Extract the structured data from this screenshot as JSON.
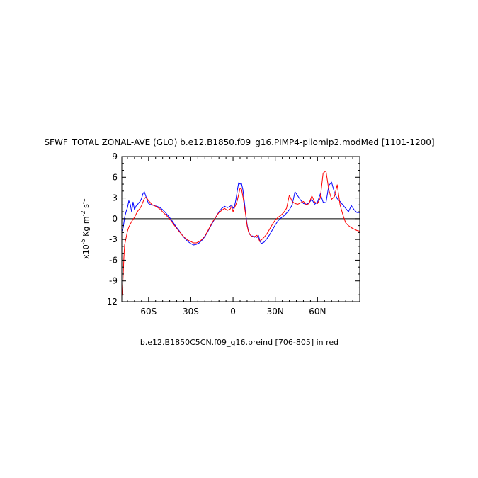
{
  "chart_data": {
    "type": "line",
    "title": "SFWF_TOTAL ZONAL-AVE (GLO) b.e12.B1850.f09_g16.PIMP4-pliomip2.modMed [1101-1200]",
    "ylabel_parts": {
      "scale": "x10",
      "scale_exp": "-5",
      "unit1": "Kg m",
      "unit1_exp": "-2",
      "unit2": "s",
      "unit2_exp": "-1"
    },
    "footnote": "b.e12.B1850C5CN.f09_g16.preind [706-805] in red",
    "xlim": [
      -79,
      90
    ],
    "ylim": [
      -12,
      9
    ],
    "x_ticks": [
      {
        "value": -60,
        "label": "60S"
      },
      {
        "value": -30,
        "label": "30S"
      },
      {
        "value": 0,
        "label": "0"
      },
      {
        "value": 30,
        "label": "30N"
      },
      {
        "value": 60,
        "label": "60N"
      }
    ],
    "y_ticks": [
      {
        "value": 9,
        "label": "9"
      },
      {
        "value": 6,
        "label": "6"
      },
      {
        "value": 3,
        "label": "3"
      },
      {
        "value": 0,
        "label": "0"
      },
      {
        "value": -3,
        "label": "-3"
      },
      {
        "value": -6,
        "label": "-6"
      },
      {
        "value": -9,
        "label": "-9"
      },
      {
        "value": -12,
        "label": "-12"
      }
    ],
    "zero_line": true,
    "grid": false,
    "series": [
      {
        "color": "#0000ff",
        "x": [
          -79,
          -78,
          -77,
          -76,
          -75,
          -74,
          -73,
          -72,
          -71,
          -70,
          -69,
          -68,
          -67,
          -66,
          -65,
          -64,
          -63,
          -62,
          -61,
          -60,
          -59,
          -58,
          -56,
          -54,
          -52,
          -50,
          -48,
          -46,
          -44,
          -42,
          -40,
          -38,
          -36,
          -34,
          -32,
          -30,
          -28,
          -26,
          -24,
          -22,
          -20,
          -18,
          -16,
          -14,
          -12,
          -10,
          -8,
          -6,
          -4,
          -2,
          -1,
          0,
          1,
          2,
          3,
          4,
          5,
          6,
          7,
          8,
          9,
          10,
          11,
          12,
          13,
          14,
          15,
          16,
          17,
          18,
          19,
          20,
          22,
          24,
          26,
          28,
          30,
          32,
          34,
          36,
          38,
          40,
          42,
          44,
          46,
          48,
          50,
          52,
          54,
          56,
          58,
          60,
          62,
          64,
          66,
          68,
          70,
          72,
          74,
          76,
          78,
          80,
          82,
          84,
          86,
          88,
          90
        ],
        "y": [
          -1.8,
          -1.3,
          0.2,
          1.0,
          1.6,
          2.6,
          2.1,
          1.0,
          2.4,
          1.3,
          1.8,
          2.0,
          2.3,
          2.5,
          2.9,
          3.6,
          3.9,
          3.3,
          2.7,
          2.2,
          2.1,
          2.0,
          1.9,
          1.8,
          1.6,
          1.3,
          0.9,
          0.4,
          -0.1,
          -0.7,
          -1.3,
          -1.8,
          -2.4,
          -2.9,
          -3.3,
          -3.6,
          -3.8,
          -3.7,
          -3.5,
          -3.1,
          -2.6,
          -1.9,
          -1.1,
          -0.4,
          0.3,
          1.0,
          1.5,
          1.8,
          1.6,
          1.8,
          2.0,
          1.5,
          1.8,
          2.7,
          4.0,
          5.2,
          5.0,
          5.1,
          4.2,
          2.5,
          0.7,
          -0.8,
          -1.8,
          -2.3,
          -2.5,
          -2.5,
          -2.7,
          -2.6,
          -2.7,
          -2.4,
          -3.1,
          -3.6,
          -3.4,
          -2.9,
          -2.3,
          -1.6,
          -0.9,
          -0.3,
          0.1,
          0.4,
          0.8,
          1.3,
          2.0,
          3.9,
          3.3,
          2.7,
          2.2,
          2.1,
          2.3,
          2.8,
          2.1,
          2.4,
          3.6,
          2.4,
          2.3,
          4.8,
          5.3,
          3.8,
          2.9,
          2.5,
          2.0,
          1.5,
          1.0,
          1.9,
          1.3,
          0.9,
          0.9
        ]
      },
      {
        "color": "#ff0000",
        "x": [
          -79,
          -78.5,
          -78,
          -77.5,
          -77,
          -76,
          -75,
          -74,
          -73,
          -72,
          -71,
          -70,
          -69,
          -68,
          -67,
          -66,
          -65,
          -64,
          -63,
          -62,
          -61,
          -60,
          -59,
          -58,
          -56,
          -54,
          -52,
          -50,
          -48,
          -46,
          -44,
          -42,
          -40,
          -38,
          -36,
          -34,
          -32,
          -30,
          -28,
          -26,
          -24,
          -22,
          -20,
          -18,
          -16,
          -14,
          -12,
          -10,
          -8,
          -6,
          -4,
          -2,
          -1,
          0,
          1,
          2,
          3,
          4,
          5,
          6,
          7,
          8,
          9,
          10,
          11,
          12,
          13,
          14,
          15,
          16,
          17,
          18,
          19,
          20,
          22,
          24,
          26,
          28,
          30,
          32,
          34,
          36,
          38,
          40,
          42,
          44,
          46,
          48,
          50,
          52,
          54,
          56,
          58,
          60,
          62,
          64,
          66,
          68,
          70,
          72,
          74,
          76,
          78,
          80,
          82,
          84,
          86,
          88,
          90
        ],
        "y": [
          -11.2,
          -10.5,
          -8.0,
          -5.5,
          -3.8,
          -2.8,
          -1.8,
          -1.2,
          -0.8,
          -0.4,
          -0.1,
          0.2,
          0.6,
          1.0,
          1.3,
          1.5,
          1.9,
          2.4,
          2.9,
          3.1,
          2.9,
          2.6,
          2.4,
          2.1,
          1.9,
          1.7,
          1.4,
          1.0,
          0.6,
          0.2,
          -0.3,
          -0.9,
          -1.4,
          -1.9,
          -2.4,
          -2.8,
          -3.1,
          -3.3,
          -3.5,
          -3.5,
          -3.3,
          -3.0,
          -2.5,
          -1.8,
          -1.0,
          -0.3,
          0.3,
          0.9,
          1.2,
          1.5,
          1.2,
          1.4,
          1.8,
          1.0,
          1.6,
          2.0,
          2.6,
          3.5,
          4.4,
          4.3,
          3.2,
          1.9,
          0.5,
          -1.0,
          -1.9,
          -2.3,
          -2.5,
          -2.6,
          -2.6,
          -2.5,
          -2.4,
          -2.8,
          -3.3,
          -3.1,
          -2.7,
          -2.2,
          -1.5,
          -0.8,
          -0.2,
          0.2,
          0.5,
          0.9,
          1.5,
          3.4,
          2.5,
          2.2,
          2.1,
          2.3,
          2.5,
          2.0,
          2.2,
          3.3,
          2.4,
          2.2,
          3.0,
          6.6,
          6.9,
          4.2,
          2.8,
          3.2,
          4.9,
          2.0,
          0.6,
          -0.6,
          -1.0,
          -1.3,
          -1.5,
          -1.7,
          -1.8
        ]
      }
    ]
  }
}
